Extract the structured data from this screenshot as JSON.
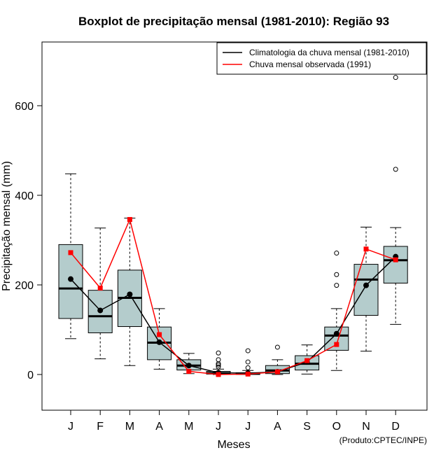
{
  "chart_data": {
    "type": "boxplot",
    "title": "Boxplot de precipitação mensal (1981-2010): Região 93",
    "xlabel": "Meses",
    "ylabel": "Precipitação mensal (mm)",
    "credit": "(Produto:CPTEC/INPE)",
    "categories": [
      "J",
      "F",
      "M",
      "A",
      "M",
      "J",
      "J",
      "A",
      "S",
      "O",
      "N",
      "D"
    ],
    "ylim": [
      -80,
      740
    ],
    "yticks": [
      0,
      200,
      400,
      600
    ],
    "colors": {
      "box_fill": "#b4cccc",
      "climatology": "#000000",
      "observed": "#ff0000"
    },
    "boxes": [
      {
        "whisker_low": 80,
        "q1": 125,
        "median": 192,
        "q3": 290,
        "whisker_high": 448,
        "outliers": []
      },
      {
        "whisker_low": 35,
        "q1": 93,
        "median": 130,
        "q3": 188,
        "whisker_high": 327,
        "outliers": []
      },
      {
        "whisker_low": 20,
        "q1": 107,
        "median": 171,
        "q3": 233,
        "whisker_high": 349,
        "outliers": []
      },
      {
        "whisker_low": 12,
        "q1": 33,
        "median": 71,
        "q3": 106,
        "whisker_high": 147,
        "outliers": []
      },
      {
        "whisker_low": 2,
        "q1": 10,
        "median": 20,
        "q3": 33,
        "whisker_high": 47,
        "outliers": []
      },
      {
        "whisker_low": 0,
        "q1": 1,
        "median": 3,
        "q3": 7,
        "whisker_high": 12,
        "outliers": [
          17,
          21,
          24,
          33,
          48
        ]
      },
      {
        "whisker_low": 0,
        "q1": 0,
        "median": 2,
        "q3": 4,
        "whisker_high": 9,
        "outliers": [
          15,
          28,
          53
        ]
      },
      {
        "whisker_low": 0,
        "q1": 2,
        "median": 9,
        "q3": 20,
        "whisker_high": 33,
        "outliers": [
          61
        ]
      },
      {
        "whisker_low": 1,
        "q1": 10,
        "median": 24,
        "q3": 42,
        "whisker_high": 66,
        "outliers": []
      },
      {
        "whisker_low": 9,
        "q1": 54,
        "median": 87,
        "q3": 106,
        "whisker_high": 147,
        "outliers": [
          199,
          223,
          271
        ]
      },
      {
        "whisker_low": 52,
        "q1": 132,
        "median": 212,
        "q3": 246,
        "whisker_high": 329,
        "outliers": []
      },
      {
        "whisker_low": 112,
        "q1": 204,
        "median": 255,
        "q3": 286,
        "whisker_high": 328,
        "outliers": [
          458,
          663
        ]
      }
    ],
    "series": [
      {
        "name": "Climatologia da chuva mensal (1981-2010)",
        "color": "#000000",
        "values": [
          213,
          143,
          179,
          72,
          20,
          4,
          3,
          6,
          28,
          91,
          199,
          263
        ]
      },
      {
        "name": "Chuva mensal observada (1991)",
        "color": "#ff0000",
        "values": [
          272,
          193,
          346,
          89,
          7,
          0,
          1,
          6,
          31,
          67,
          280,
          256
        ]
      }
    ],
    "legend_position": "top-right"
  }
}
